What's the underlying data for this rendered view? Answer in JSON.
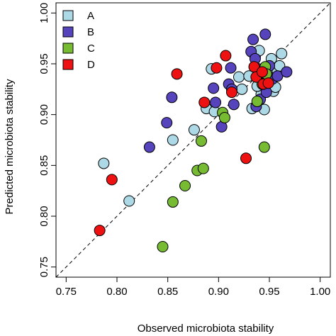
{
  "chart_data": {
    "type": "scatter",
    "xlabel": "Observed microbiota stability",
    "ylabel": "Predicted microbiota stability",
    "xlim": [
      0.74,
      1.01
    ],
    "ylim": [
      0.74,
      1.01
    ],
    "x_ticks": [
      "0.75",
      "0.80",
      "0.85",
      "0.90",
      "0.95",
      "1.00"
    ],
    "y_ticks": [
      "0.75",
      "0.80",
      "0.85",
      "0.90",
      "0.95",
      "1.00"
    ],
    "x_tick_values": [
      0.75,
      0.8,
      0.85,
      0.9,
      0.95,
      1.0
    ],
    "y_tick_values": [
      0.75,
      0.8,
      0.85,
      0.9,
      0.95,
      1.0
    ],
    "reference_line": "y = x (dashed)",
    "legend_position": "top-left",
    "series": [
      {
        "name": "A",
        "color": "#add8e6",
        "points": [
          [
            0.787,
            0.852
          ],
          [
            0.812,
            0.815
          ],
          [
            0.855,
            0.875
          ],
          [
            0.876,
            0.885
          ],
          [
            0.888,
            0.906
          ],
          [
            0.893,
            0.945
          ],
          [
            0.896,
            0.903
          ],
          [
            0.92,
            0.937
          ],
          [
            0.923,
            0.925
          ],
          [
            0.93,
            0.938
          ],
          [
            0.933,
            0.906
          ],
          [
            0.936,
            0.957
          ],
          [
            0.94,
            0.963
          ],
          [
            0.942,
            0.92
          ],
          [
            0.945,
            0.905
          ],
          [
            0.947,
            0.933
          ],
          [
            0.949,
            0.945
          ],
          [
            0.952,
            0.955
          ],
          [
            0.954,
            0.923
          ],
          [
            0.956,
            0.927
          ],
          [
            0.958,
            0.943
          ],
          [
            0.96,
            0.948
          ],
          [
            0.962,
            0.96
          ],
          [
            0.938,
            0.928
          ]
        ]
      },
      {
        "name": "B",
        "color": "#5544bb",
        "points": [
          [
            0.832,
            0.868
          ],
          [
            0.849,
            0.892
          ],
          [
            0.854,
            0.917
          ],
          [
            0.895,
            0.926
          ],
          [
            0.897,
            0.912
          ],
          [
            0.903,
            0.888
          ],
          [
            0.91,
            0.93
          ],
          [
            0.912,
            0.946
          ],
          [
            0.913,
            0.925
          ],
          [
            0.915,
            0.91
          ],
          [
            0.932,
            0.962
          ],
          [
            0.934,
            0.974
          ],
          [
            0.936,
            0.955
          ],
          [
            0.937,
            0.908
          ],
          [
            0.939,
            0.945
          ],
          [
            0.941,
            0.915
          ],
          [
            0.943,
            0.933
          ],
          [
            0.944,
            0.941
          ],
          [
            0.946,
            0.979
          ],
          [
            0.947,
            0.922
          ],
          [
            0.95,
            0.948
          ],
          [
            0.953,
            0.935
          ],
          [
            0.958,
            0.938
          ],
          [
            0.967,
            0.942
          ]
        ]
      },
      {
        "name": "C",
        "color": "#77bb33",
        "points": [
          [
            0.845,
            0.77
          ],
          [
            0.855,
            0.814
          ],
          [
            0.867,
            0.83
          ],
          [
            0.879,
            0.845
          ],
          [
            0.883,
            0.874
          ],
          [
            0.885,
            0.847
          ],
          [
            0.904,
            0.902
          ],
          [
            0.906,
            0.897
          ],
          [
            0.938,
            0.913
          ],
          [
            0.943,
            0.93
          ],
          [
            0.945,
            0.868
          ],
          [
            0.946,
            0.947
          ],
          [
            0.947,
            0.94
          ]
        ]
      },
      {
        "name": "D",
        "color": "#ee1111",
        "points": [
          [
            0.783,
            0.786
          ],
          [
            0.795,
            0.836
          ],
          [
            0.859,
            0.94
          ],
          [
            0.886,
            0.912
          ],
          [
            0.898,
            0.946
          ],
          [
            0.907,
            0.958
          ],
          [
            0.913,
            0.922
          ],
          [
            0.927,
            0.857
          ],
          [
            0.935,
            0.947
          ],
          [
            0.937,
            0.937
          ],
          [
            0.943,
            0.942
          ],
          [
            0.944,
            0.93
          ],
          [
            0.949,
            0.931
          ]
        ]
      }
    ]
  }
}
